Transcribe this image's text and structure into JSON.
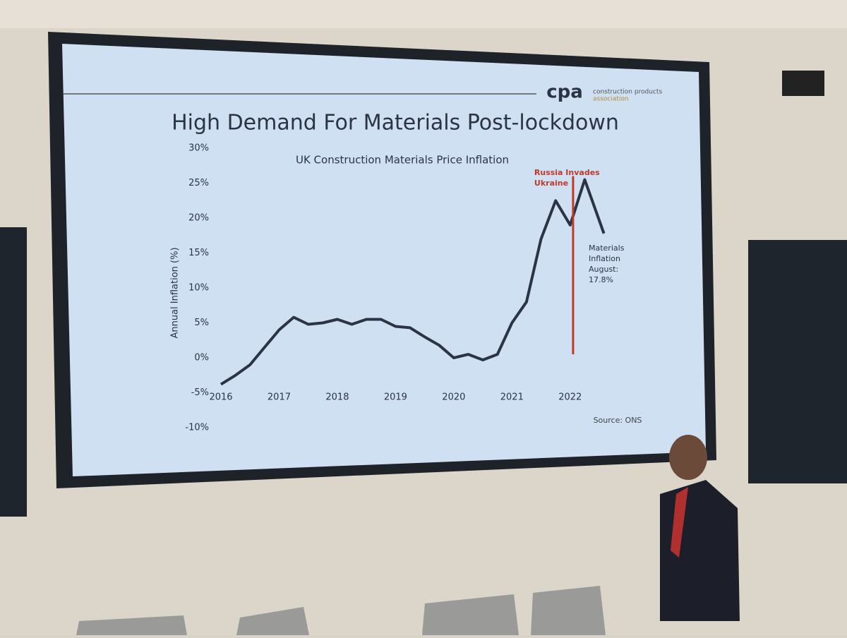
{
  "chart_data": {
    "type": "line",
    "title": "High Demand For Materials Post-lockdown",
    "subtitle": "UK Construction Materials Price Inflation",
    "y_label": "Annual Inflation (%)",
    "x": [
      2016,
      2016.25,
      2016.5,
      2016.75,
      2017,
      2017.25,
      2017.5,
      2017.75,
      2018,
      2018.25,
      2018.5,
      2018.75,
      2019,
      2019.25,
      2019.5,
      2019.75,
      2020,
      2020.25,
      2020.5,
      2020.75,
      2021,
      2021.25,
      2021.5,
      2021.75,
      2022,
      2022.25,
      2022.58
    ],
    "values": [
      -3.8,
      -2.5,
      -1,
      1.5,
      4,
      5.8,
      4.8,
      5,
      5.5,
      4.8,
      5.5,
      5.5,
      4.5,
      4.3,
      3,
      1.8,
      0,
      0.5,
      -0.3,
      0.5,
      5,
      8,
      17,
      22.5,
      19,
      25.5,
      17.8
    ],
    "color": "#2b3444",
    "xlim": [
      2015.9,
      2022.9
    ],
    "xticks": [
      2016,
      2017,
      2018,
      2019,
      2020,
      2021,
      2022
    ],
    "ylim": [
      -10,
      30
    ],
    "yticks": [
      {
        "value": 30,
        "label": "30%"
      },
      {
        "value": 25,
        "label": "25%"
      },
      {
        "value": 20,
        "label": "20%"
      },
      {
        "value": 15,
        "label": "15%"
      },
      {
        "value": 10,
        "label": "10%"
      },
      {
        "value": 5,
        "label": "5%"
      },
      {
        "value": 0,
        "label": "0%"
      },
      {
        "value": -5,
        "label": "-5%"
      },
      {
        "value": -10,
        "label": "-10%"
      }
    ],
    "annotations": [
      {
        "lines": [
          "Russia Invades",
          "Ukraine"
        ],
        "x": 2022.05,
        "y": [
          0.5,
          26
        ],
        "color": "#c0392b"
      },
      {
        "lines": [
          "Materials",
          "Inflation",
          "August:",
          "17.8%"
        ]
      }
    ],
    "source": "Source: ONS",
    "logo": {
      "mark": "cpa",
      "lines": [
        "construction products",
        "association"
      ]
    }
  }
}
